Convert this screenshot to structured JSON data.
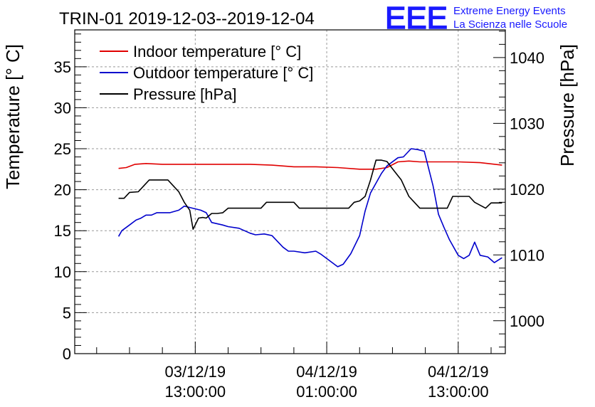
{
  "chart_data": {
    "type": "line",
    "title": "TRIN-01 2019-12-03--2019-12-04",
    "ylabel_left": "Temperature [° C]",
    "ylabel_right": "Pressure [hPa]",
    "ylim_left": [
      0,
      39.5
    ],
    "ylim_right": [
      995,
      1044.2
    ],
    "xlim_hours": [
      2.0,
      41.3
    ],
    "x_ticks": [
      {
        "hour": 13,
        "date": "03/12/19",
        "time": "13:00:00"
      },
      {
        "hour": 25,
        "date": "04/12/19",
        "time": "01:00:00"
      },
      {
        "hour": 37,
        "date": "04/12/19",
        "time": "13:00:00"
      }
    ],
    "y_ticks_left": [
      0,
      5,
      10,
      15,
      20,
      25,
      30,
      35
    ],
    "y_ticks_right": [
      1000,
      1010,
      1020,
      1030,
      1040
    ],
    "grid": true,
    "legend_position": "top-left",
    "series": [
      {
        "name": "Indoor temperature [° C]",
        "axis": "left",
        "color": "#e00000",
        "x": [
          6.0,
          6.7,
          7.5,
          8.5,
          10,
          12,
          14,
          16,
          18,
          20,
          22,
          24,
          26,
          28,
          29.5,
          30.5,
          31.5,
          32.5,
          33.5,
          35,
          37,
          39,
          41
        ],
        "y": [
          22.6,
          22.7,
          23.1,
          23.2,
          23.1,
          23.1,
          23.1,
          23.1,
          23.1,
          23.0,
          22.8,
          22.8,
          22.7,
          22.5,
          22.5,
          22.7,
          23.4,
          23.5,
          23.4,
          23.4,
          23.4,
          23.3,
          23.0
        ]
      },
      {
        "name": "Outdoor temperature [° C]",
        "axis": "left",
        "color": "#0000cc",
        "x": [
          6.0,
          6.3,
          7.0,
          7.6,
          8.0,
          8.5,
          9.0,
          9.5,
          10.0,
          10.7,
          11.5,
          12.0,
          12.6,
          13.5,
          14.0,
          14.5,
          15.5,
          16.0,
          17.0,
          18.0,
          18.5,
          19.3,
          20.0,
          21.0,
          21.5,
          22.0,
          23.0,
          24.0,
          24.5,
          25.0,
          26.0,
          26.5,
          27.2,
          28.0,
          28.5,
          29.0,
          29.5,
          30.0,
          30.5,
          31.5,
          32.0,
          32.7,
          33.3,
          33.9,
          34.7,
          35.2,
          35.7,
          36.2,
          37.0,
          37.5,
          38.0,
          38.5,
          39.0,
          39.7,
          40.3,
          41.0
        ],
        "y": [
          14.3,
          15.0,
          15.7,
          16.3,
          16.5,
          16.9,
          16.9,
          17.2,
          17.2,
          17.2,
          17.5,
          18.0,
          17.8,
          17.5,
          17.2,
          16.0,
          15.7,
          15.5,
          15.3,
          14.7,
          14.5,
          14.6,
          14.4,
          13.0,
          12.5,
          12.5,
          12.3,
          12.5,
          12.1,
          11.6,
          10.6,
          10.9,
          12.2,
          14.4,
          17.4,
          19.6,
          20.8,
          22.0,
          22.9,
          23.9,
          24.0,
          25.0,
          24.9,
          24.7,
          20.5,
          17.0,
          15.4,
          13.9,
          12.0,
          11.6,
          12.0,
          13.6,
          12.0,
          11.8,
          11.1,
          11.7
        ]
      },
      {
        "name": "Pressure [hPa]",
        "axis": "right",
        "color": "#000000",
        "x": [
          6.0,
          6.5,
          7.0,
          7.8,
          8.3,
          8.8,
          9.5,
          10.5,
          11.0,
          11.5,
          12.0,
          12.5,
          12.8,
          13.3,
          13.7,
          14.0,
          14.5,
          15.0,
          15.5,
          16.0,
          16.5,
          19.0,
          19.5,
          22.0,
          22.5,
          26.0,
          27.0,
          27.5,
          28.0,
          28.5,
          29.0,
          29.5,
          30.0,
          30.5,
          31.0,
          31.8,
          32.5,
          33.0,
          33.5,
          34.0,
          36.0,
          36.5,
          37.0,
          38.0,
          38.5,
          39.5,
          40.0,
          40.5,
          41.0
        ],
        "y": [
          1018.6,
          1018.6,
          1019.5,
          1019.6,
          1020.5,
          1021.4,
          1021.4,
          1021.4,
          1020.5,
          1019.6,
          1018.0,
          1016.8,
          1013.9,
          1015.6,
          1015.7,
          1015.6,
          1016.3,
          1016.3,
          1016.4,
          1017.1,
          1017.1,
          1017.1,
          1018.0,
          1018.0,
          1017.1,
          1017.1,
          1017.1,
          1018.0,
          1018.2,
          1018.9,
          1021.4,
          1024.4,
          1024.4,
          1024.2,
          1023.1,
          1021.4,
          1018.9,
          1018.0,
          1017.1,
          1017.1,
          1017.1,
          1018.9,
          1018.9,
          1018.9,
          1018.0,
          1017.1,
          1017.9,
          1017.9,
          1017.9
        ]
      }
    ]
  },
  "logo": {
    "mark": "EEE",
    "line1": "Extreme Energy Events",
    "line2": "La Scienza nelle Scuole",
    "color": "#1a1aff"
  }
}
